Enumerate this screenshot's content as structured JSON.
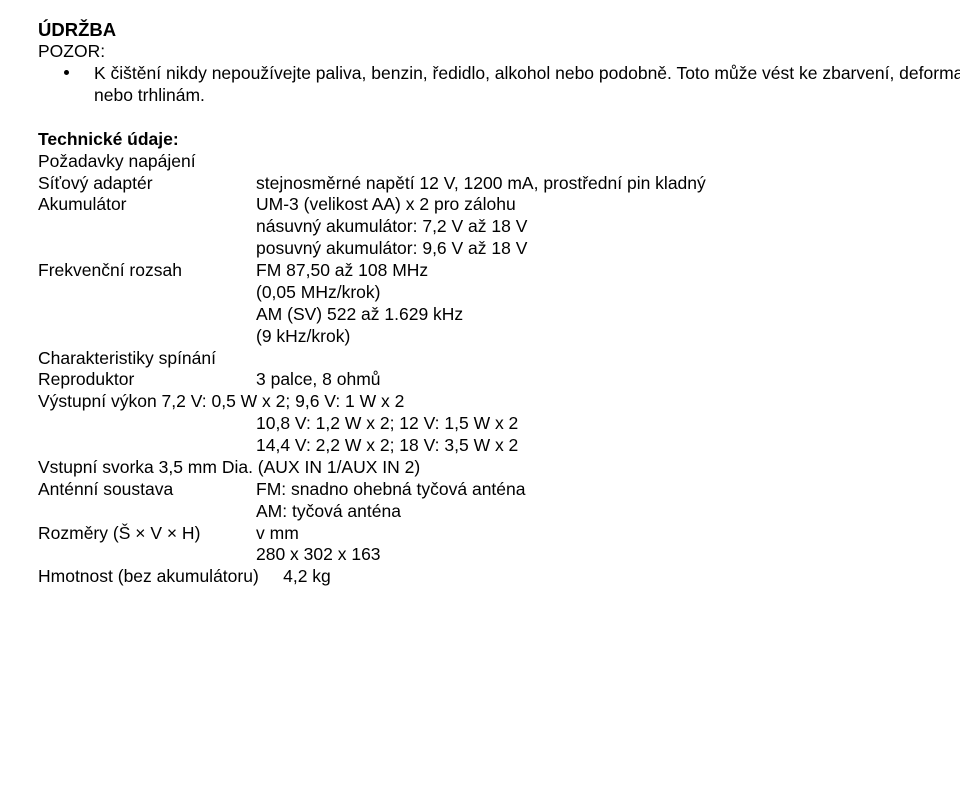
{
  "title": "ÚDRŽBA",
  "caution_label": "POZOR:",
  "bullet_text": "K čištění nikdy nepoužívejte paliva, benzin, ředidlo, alkohol nebo podobně. Toto může vést ke zbarvení, deformacím nebo trhlinám.",
  "tech_title": "Technické údaje:",
  "rows": {
    "power_label": "Požadavky napájení",
    "adapter_label": "Síťový adaptér",
    "adapter_value": "stejnosměrné napětí 12 V, 1200 mA, prostřední pin kladný",
    "accum_label": "Akumulátor",
    "accum_value": "UM-3 (velikost AA) x 2 pro zálohu",
    "accum_v2": "násuvný akumulátor: 7,2 V až 18 V",
    "accum_v3": "posuvný akumulátor: 9,6 V až 18 V",
    "freq_label": "Frekvenční rozsah",
    "freq_v1": "FM 87,50 až 108 MHz",
    "freq_v2": "(0,05 MHz/krok)",
    "freq_v3": "AM (SV) 522 až 1.629 kHz",
    "freq_v4": "(9 kHz/krok)",
    "char_label": "Charakteristiky spínání",
    "speaker_label": "Reproduktor",
    "speaker_value": "3 palce, 8 ohmů",
    "outpow_full": "Výstupní výkon 7,2 V: 0,5 W x 2; 9,6 V: 1 W x 2",
    "outpow_l2": "10,8 V: 1,2 W x 2; 12 V: 1,5 W x 2",
    "outpow_l3": "14,4 V: 2,2 W x 2; 18 V: 3,5 W x 2",
    "input_full": "Vstupní svorka  3,5 mm Dia. (AUX IN 1/AUX IN 2)",
    "ant_label": "Anténní soustava",
    "ant_v1": "FM: snadno ohebná tyčová anténa",
    "ant_v2": "AM: tyčová anténa",
    "dim_label": "Rozměry (Š × V × H)",
    "dim_v1": "v mm",
    "dim_v2": "280 x 302 x 163",
    "weight_label": "Hmotnost (bez akumulátoru)",
    "weight_value": "4,2 kg"
  }
}
